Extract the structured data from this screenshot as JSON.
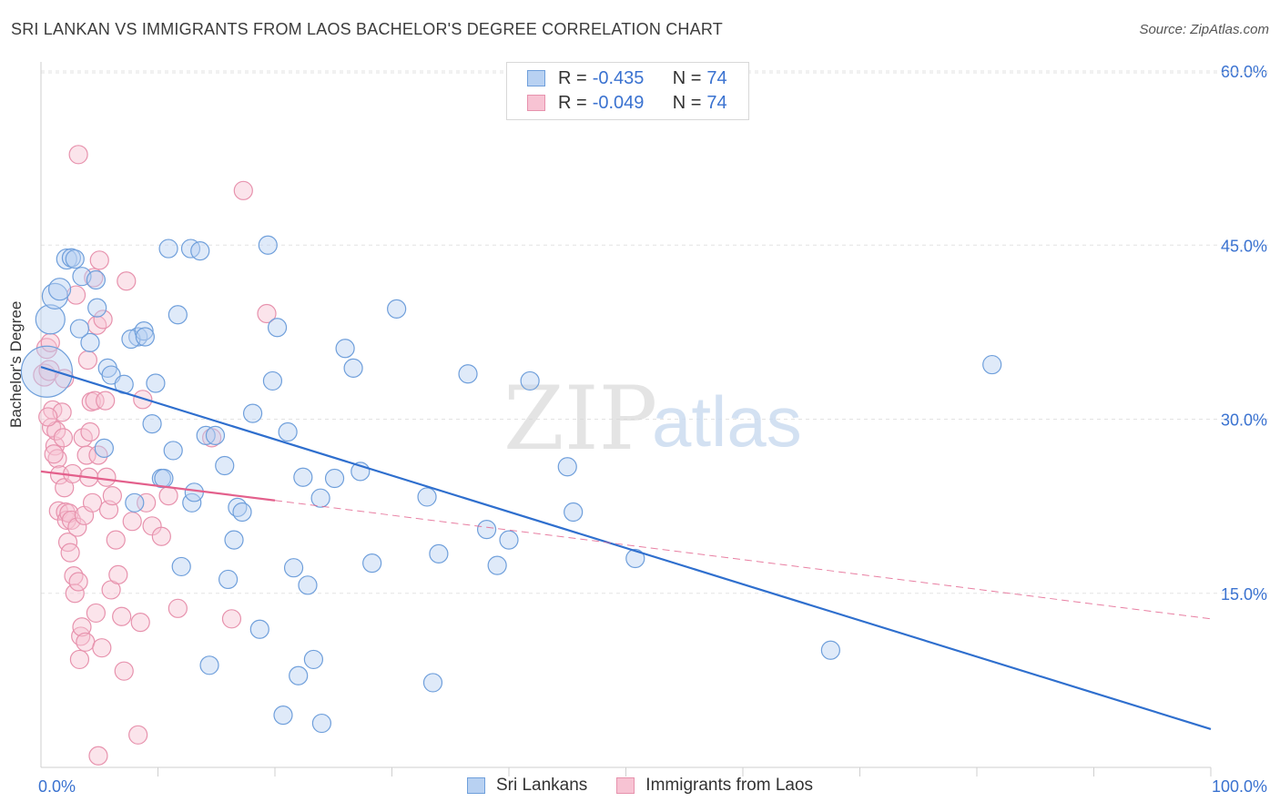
{
  "title": "SRI LANKAN VS IMMIGRANTS FROM LAOS BACHELOR'S DEGREE CORRELATION CHART",
  "source": "Source: ZipAtlas.com",
  "watermark": {
    "zip": "ZIP",
    "atlas": "atlas"
  },
  "legend": {
    "rows": [
      {
        "r_label": "R =",
        "r_value": "-0.435",
        "n_label": "N =",
        "n_value": "74"
      },
      {
        "r_label": "R =",
        "r_value": "-0.049",
        "n_label": "N =",
        "n_value": "74"
      }
    ]
  },
  "colors": {
    "blue_fill": "#b8d1f2",
    "blue_stroke": "#6f9fdb",
    "blue_line": "#2f6fce",
    "pink_fill": "#f7c3d3",
    "pink_stroke": "#e792ad",
    "pink_line": "#e3608c",
    "tick_label": "#3a72d0",
    "grid": "#e3e3e3"
  },
  "chart_data": {
    "type": "scatter",
    "title": "SRI LANKAN VS IMMIGRANTS FROM LAOS BACHELOR'S DEGREE CORRELATION CHART",
    "xlabel": "",
    "ylabel": "Bachelor's Degree",
    "xlim": [
      0,
      100
    ],
    "ylim": [
      0,
      60
    ],
    "x_tick_labels": [
      "0.0%",
      "100.0%"
    ],
    "y_ticks": [
      15,
      30,
      45,
      60
    ],
    "y_tick_labels": [
      "15.0%",
      "30.0%",
      "45.0%",
      "60.0%"
    ],
    "grid": true,
    "legend_position": "top-center",
    "series": [
      {
        "name": "Sri Lankans",
        "r": -0.435,
        "n": 74,
        "trend": {
          "x": [
            0,
            100
          ],
          "y": [
            34.5,
            3.3
          ]
        },
        "points": [
          [
            0.5,
            34.1
          ],
          [
            0.8,
            38.6
          ],
          [
            1.2,
            40.6
          ],
          [
            1.6,
            41.2
          ],
          [
            2.2,
            43.8
          ],
          [
            2.6,
            43.9
          ],
          [
            2.9,
            43.8
          ],
          [
            3.5,
            42.3
          ],
          [
            4.7,
            42.0
          ],
          [
            4.8,
            39.6
          ],
          [
            4.2,
            36.6
          ],
          [
            5.7,
            34.4
          ],
          [
            6.0,
            33.8
          ],
          [
            7.1,
            33.0
          ],
          [
            8.3,
            37.1
          ],
          [
            7.7,
            36.9
          ],
          [
            8.8,
            37.6
          ],
          [
            8.9,
            37.1
          ],
          [
            9.5,
            29.6
          ],
          [
            9.8,
            33.1
          ],
          [
            10.3,
            24.9
          ],
          [
            10.5,
            24.9
          ],
          [
            10.9,
            44.7
          ],
          [
            11.3,
            27.3
          ],
          [
            11.7,
            39.0
          ],
          [
            12.8,
            44.7
          ],
          [
            13.6,
            44.5
          ],
          [
            12.0,
            17.3
          ],
          [
            12.9,
            22.8
          ],
          [
            14.1,
            28.6
          ],
          [
            14.9,
            28.6
          ],
          [
            15.7,
            26.0
          ],
          [
            16.0,
            16.2
          ],
          [
            16.5,
            19.6
          ],
          [
            16.8,
            22.4
          ],
          [
            17.2,
            22.0
          ],
          [
            18.1,
            30.5
          ],
          [
            18.7,
            11.9
          ],
          [
            19.4,
            45.0
          ],
          [
            19.8,
            33.3
          ],
          [
            20.2,
            37.9
          ],
          [
            20.7,
            4.5
          ],
          [
            21.1,
            28.9
          ],
          [
            21.6,
            17.2
          ],
          [
            22.0,
            7.9
          ],
          [
            22.4,
            25.0
          ],
          [
            22.8,
            15.7
          ],
          [
            23.3,
            9.3
          ],
          [
            23.9,
            23.2
          ],
          [
            25.1,
            24.9
          ],
          [
            26.0,
            36.1
          ],
          [
            26.7,
            34.4
          ],
          [
            27.3,
            25.5
          ],
          [
            28.3,
            17.6
          ],
          [
            30.4,
            39.5
          ],
          [
            33.0,
            23.3
          ],
          [
            33.5,
            7.3
          ],
          [
            34.0,
            18.4
          ],
          [
            36.5,
            33.9
          ],
          [
            38.1,
            20.5
          ],
          [
            39.0,
            17.4
          ],
          [
            40.0,
            19.6
          ],
          [
            41.8,
            33.3
          ],
          [
            45.0,
            25.9
          ],
          [
            45.5,
            22.0
          ],
          [
            50.8,
            18.0
          ],
          [
            67.5,
            10.1
          ],
          [
            81.3,
            34.7
          ],
          [
            14.4,
            8.8
          ],
          [
            24.0,
            3.8
          ],
          [
            5.4,
            27.5
          ],
          [
            8.0,
            22.8
          ],
          [
            13.1,
            23.7
          ],
          [
            3.3,
            37.8
          ]
        ],
        "sizes": [
          28,
          16,
          14,
          12,
          11,
          10,
          10,
          10,
          10,
          10,
          10,
          10,
          10,
          10,
          10,
          10,
          10,
          10,
          10,
          10,
          10,
          10,
          10,
          10,
          10,
          10,
          10,
          10,
          10,
          10,
          10,
          10,
          10,
          10,
          10,
          10,
          10,
          10,
          10,
          10,
          10,
          10,
          10,
          10,
          10,
          10,
          10,
          10,
          10,
          10,
          10,
          10,
          10,
          10,
          10,
          10,
          10,
          10,
          10,
          10,
          10,
          10,
          10,
          10,
          10,
          10,
          10,
          10,
          10,
          10,
          10,
          10,
          10,
          10
        ]
      },
      {
        "name": "Immigrants from Laos",
        "r": -0.049,
        "n": 74,
        "trend": {
          "x": [
            0,
            20
          ],
          "y": [
            25.5,
            23.0
          ]
        },
        "trend_extended": {
          "x": [
            20,
            100
          ],
          "y": [
            23.0,
            12.8
          ]
        },
        "points": [
          [
            0.3,
            33.8
          ],
          [
            0.5,
            36.1
          ],
          [
            0.7,
            34.2
          ],
          [
            0.8,
            36.6
          ],
          [
            0.9,
            29.3
          ],
          [
            1.0,
            30.8
          ],
          [
            1.2,
            27.7
          ],
          [
            1.3,
            29.0
          ],
          [
            1.4,
            26.6
          ],
          [
            1.5,
            22.1
          ],
          [
            1.6,
            25.2
          ],
          [
            1.8,
            30.6
          ],
          [
            1.9,
            28.4
          ],
          [
            2.0,
            24.1
          ],
          [
            2.1,
            22.0
          ],
          [
            2.2,
            21.3
          ],
          [
            2.3,
            19.4
          ],
          [
            2.4,
            21.9
          ],
          [
            2.5,
            18.5
          ],
          [
            2.6,
            21.3
          ],
          [
            2.7,
            25.3
          ],
          [
            2.8,
            16.5
          ],
          [
            2.9,
            15.0
          ],
          [
            3.0,
            40.7
          ],
          [
            3.1,
            20.7
          ],
          [
            3.2,
            16.0
          ],
          [
            3.3,
            9.3
          ],
          [
            3.4,
            11.3
          ],
          [
            3.5,
            12.1
          ],
          [
            3.6,
            28.4
          ],
          [
            3.7,
            21.7
          ],
          [
            3.8,
            10.8
          ],
          [
            3.9,
            26.9
          ],
          [
            4.0,
            35.1
          ],
          [
            4.1,
            25.0
          ],
          [
            4.2,
            28.9
          ],
          [
            4.3,
            31.5
          ],
          [
            4.4,
            22.8
          ],
          [
            4.5,
            42.2
          ],
          [
            4.6,
            31.6
          ],
          [
            4.7,
            13.3
          ],
          [
            4.8,
            38.1
          ],
          [
            4.9,
            26.9
          ],
          [
            5.0,
            43.7
          ],
          [
            5.2,
            10.3
          ],
          [
            5.3,
            38.6
          ],
          [
            5.5,
            31.6
          ],
          [
            5.6,
            25.0
          ],
          [
            5.8,
            22.2
          ],
          [
            6.0,
            15.3
          ],
          [
            6.1,
            23.4
          ],
          [
            6.4,
            19.6
          ],
          [
            6.6,
            16.6
          ],
          [
            6.9,
            13.0
          ],
          [
            7.1,
            8.3
          ],
          [
            7.3,
            41.9
          ],
          [
            7.8,
            21.2
          ],
          [
            8.3,
            2.8
          ],
          [
            8.5,
            12.5
          ],
          [
            8.7,
            31.7
          ],
          [
            9.0,
            22.8
          ],
          [
            9.5,
            20.8
          ],
          [
            10.3,
            19.9
          ],
          [
            10.9,
            23.4
          ],
          [
            11.7,
            13.7
          ],
          [
            14.6,
            28.4
          ],
          [
            16.3,
            12.8
          ],
          [
            17.3,
            49.7
          ],
          [
            19.3,
            39.1
          ],
          [
            3.2,
            52.8
          ],
          [
            4.9,
            1.0
          ],
          [
            0.6,
            30.2
          ],
          [
            1.1,
            27.0
          ],
          [
            2.0,
            33.5
          ]
        ],
        "sizes": [
          12,
          11,
          11,
          10,
          10,
          10,
          10,
          10,
          10,
          10,
          10,
          10,
          10,
          10,
          10,
          10,
          10,
          10,
          10,
          10,
          10,
          10,
          10,
          10,
          10,
          10,
          10,
          10,
          10,
          10,
          10,
          10,
          10,
          10,
          10,
          10,
          10,
          10,
          10,
          10,
          10,
          10,
          10,
          10,
          10,
          10,
          10,
          10,
          10,
          10,
          10,
          10,
          10,
          10,
          10,
          10,
          10,
          10,
          10,
          10,
          10,
          10,
          10,
          10,
          10,
          10,
          10,
          10,
          10,
          10,
          10,
          10,
          10,
          10
        ]
      }
    ]
  }
}
